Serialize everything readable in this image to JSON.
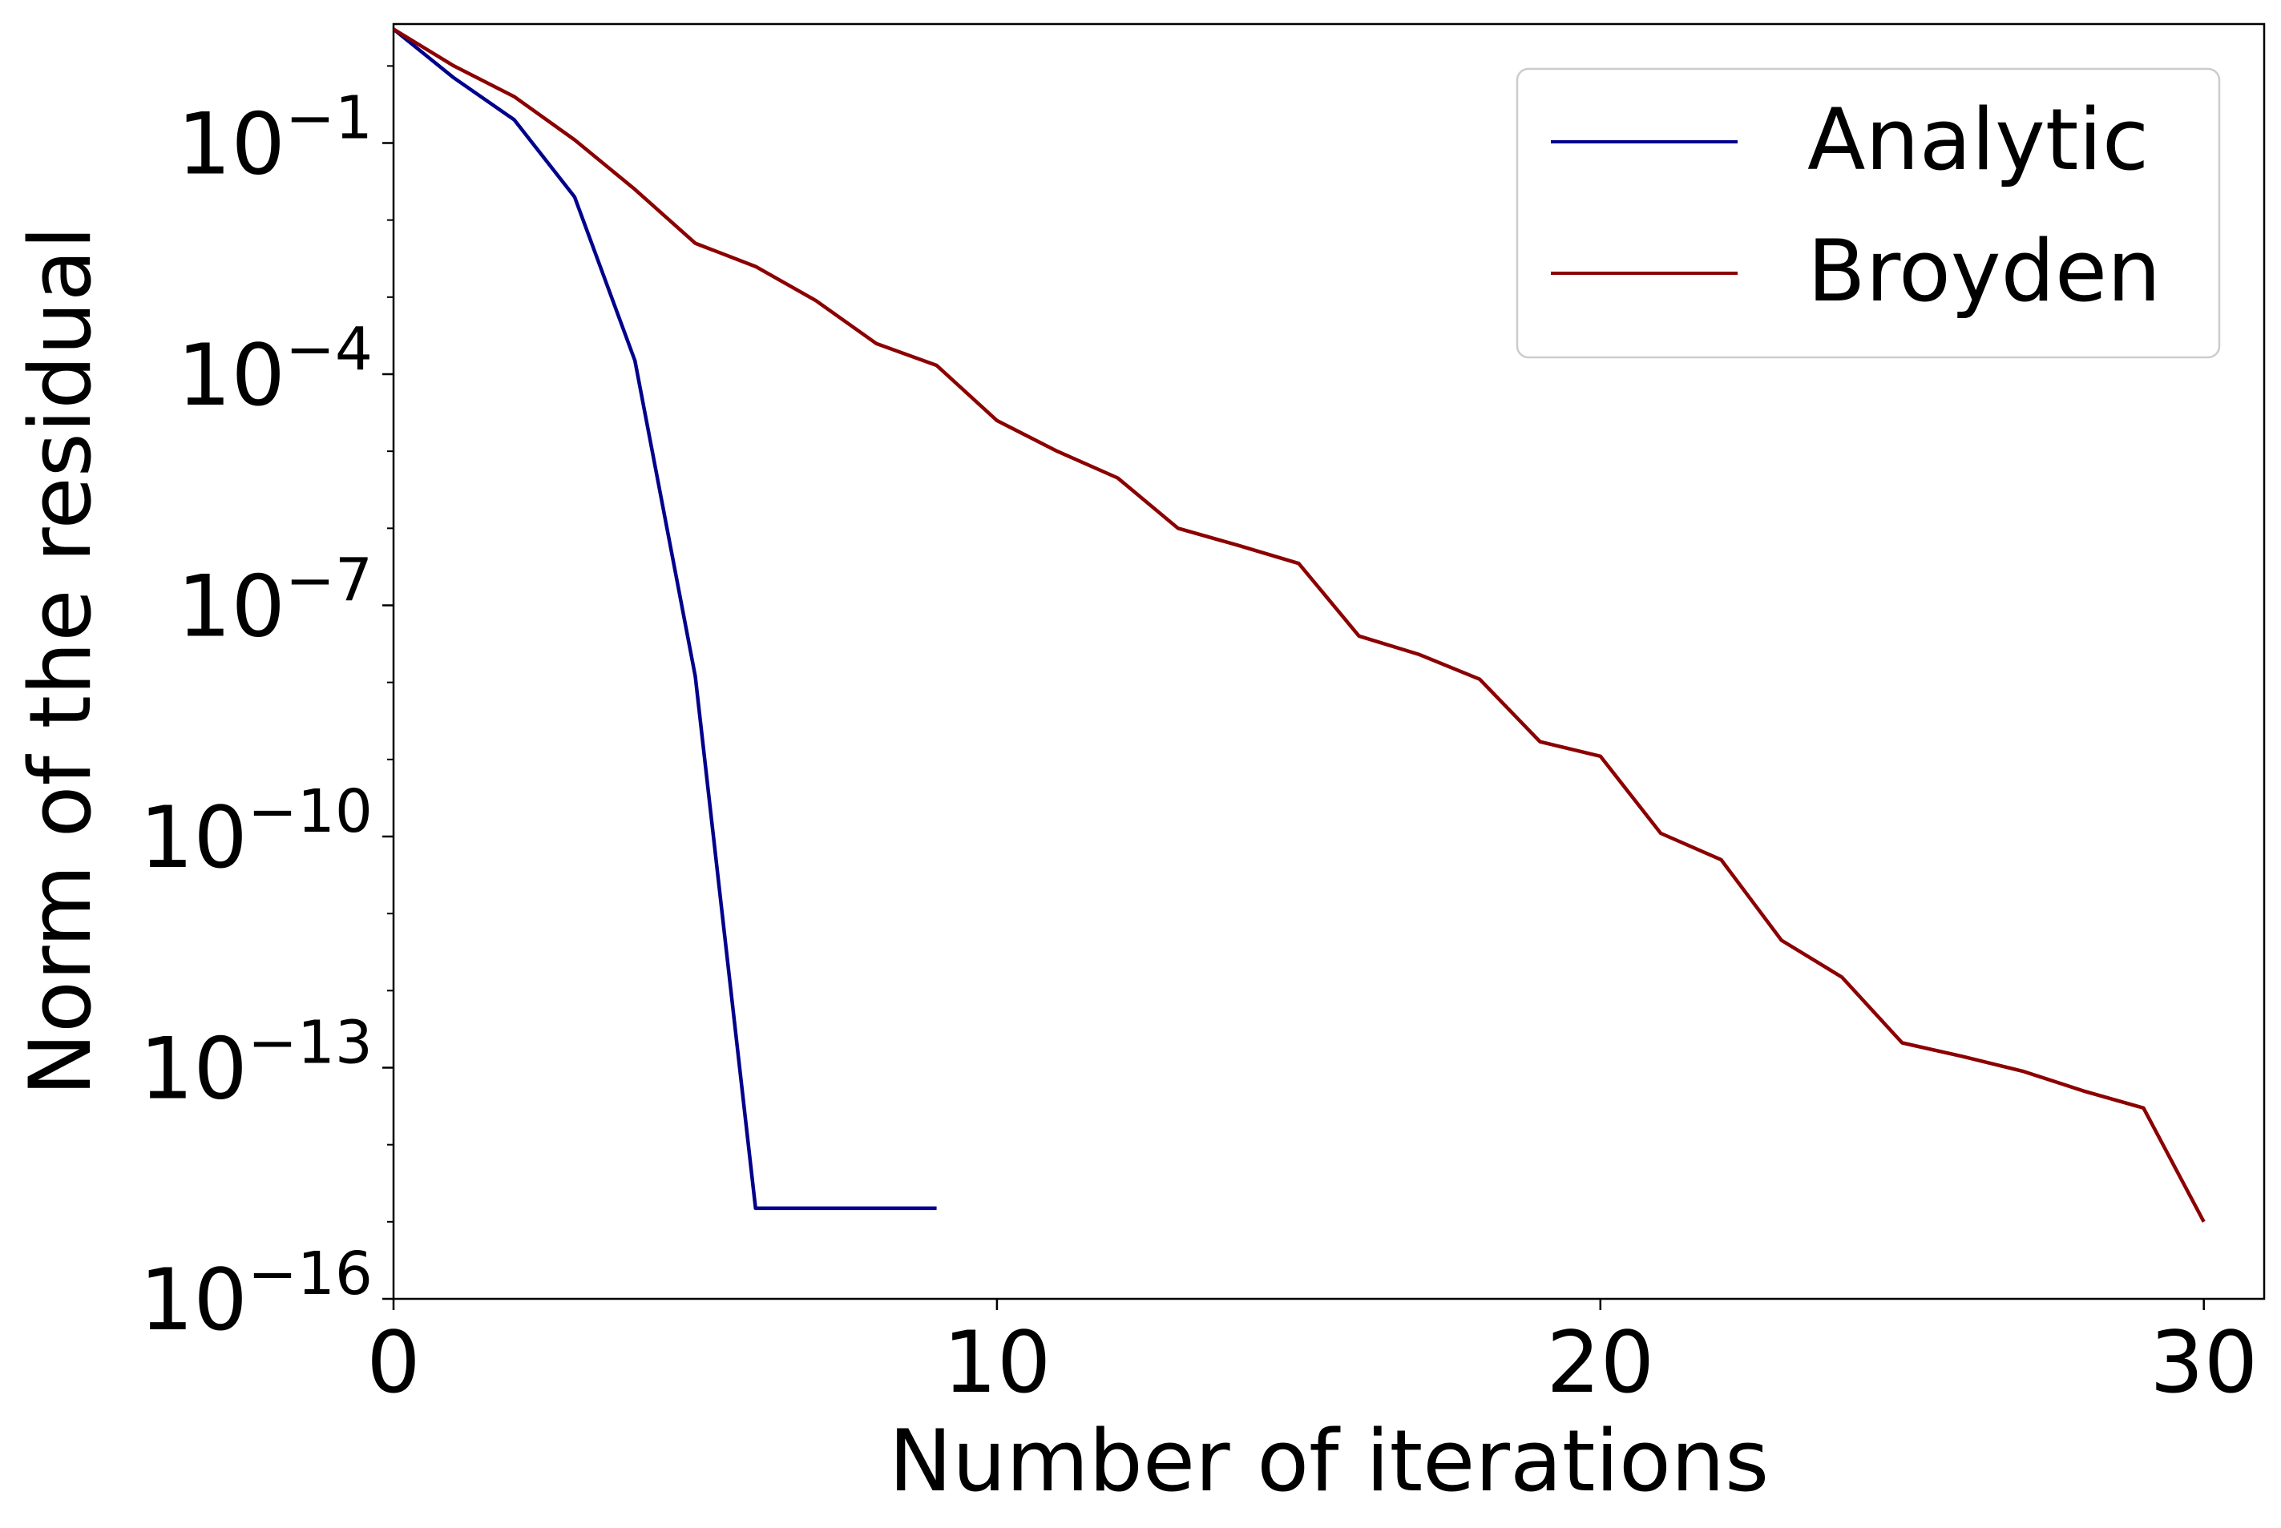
{
  "chart_data": {
    "type": "line",
    "title": "",
    "xlabel": "Number of iterations",
    "ylabel": "Norm of the residual",
    "yscale": "log",
    "xlim": [
      0,
      31
    ],
    "ylim": [
      1e-16,
      3.5
    ],
    "grid": false,
    "legend_position": "top-right",
    "xticks": [
      {
        "value": 0,
        "label": "0"
      },
      {
        "value": 10,
        "label": "10"
      },
      {
        "value": 20,
        "label": "20"
      },
      {
        "value": 30,
        "label": "30"
      }
    ],
    "yticks": [
      {
        "value": -1,
        "base": "10",
        "exp": "−1"
      },
      {
        "value": -4,
        "base": "10",
        "exp": "−4"
      },
      {
        "value": -7,
        "base": "10",
        "exp": "−7"
      },
      {
        "value": -10,
        "base": "10",
        "exp": "−10"
      },
      {
        "value": -13,
        "base": "10",
        "exp": "−13"
      },
      {
        "value": -16,
        "base": "10",
        "exp": "−16"
      }
    ],
    "series": [
      {
        "name": "Analytic",
        "color": "#00008b",
        "x": [
          0,
          1,
          2,
          3,
          4,
          5,
          6,
          7,
          8,
          9
        ],
        "y": [
          3.0,
          0.7,
          0.2,
          0.02,
          0.00015,
          1.2e-08,
          1.5e-15,
          1.5e-15,
          1.5e-15,
          1.5e-15
        ]
      },
      {
        "name": "Broyden",
        "color": "#8b0000",
        "x": [
          0,
          1,
          2,
          3,
          4,
          5,
          6,
          7,
          8,
          9,
          10,
          11,
          12,
          13,
          14,
          15,
          16,
          17,
          18,
          19,
          20,
          21,
          22,
          23,
          24,
          25,
          26,
          27,
          28,
          29,
          30
        ],
        "y": [
          3.0,
          1.0,
          0.4,
          0.11,
          0.025,
          0.005,
          0.0025,
          0.0009,
          0.00025,
          0.00013,
          2.5e-05,
          1e-05,
          4.5e-06,
          1e-06,
          6e-07,
          3.5e-07,
          4e-08,
          2.3e-08,
          1.1e-08,
          1.7e-09,
          1.1e-09,
          1.1e-10,
          5e-11,
          4.5e-12,
          1.5e-12,
          2.1e-13,
          1.4e-13,
          9e-14,
          5e-14,
          3e-14,
          1e-15
        ]
      }
    ]
  }
}
